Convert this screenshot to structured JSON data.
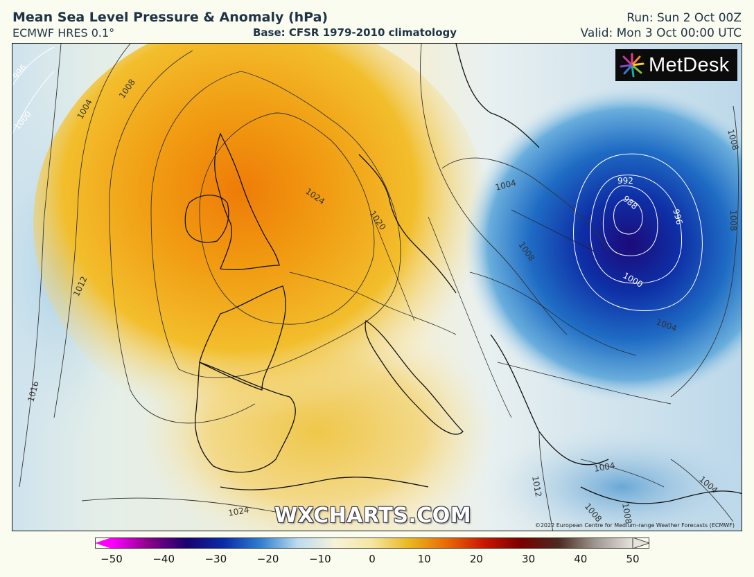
{
  "header": {
    "title": "Mean Sea Level Pressure & Anomaly (hPa)",
    "model": "ECMWF HRES 0.1°",
    "base": "Base: CFSR 1979-2010 climatology",
    "run": "Run: Sun 2 Oct 00Z",
    "valid": "Valid: Mon 3 Oct 00:00 UTC"
  },
  "logo": {
    "text": "MetDesk",
    "icon": "metdesk-starburst-icon"
  },
  "watermark": "WXCHARTS.COM",
  "copyright": "©2022 European Centre for Medium-range Weather Forecasts (ECMWF)",
  "isobar_labels": [
    "996",
    "1000",
    "1004",
    "1008",
    "1012",
    "1016",
    "1020",
    "1024",
    "1004",
    "1008",
    "1000",
    "996",
    "992",
    "988",
    "1004",
    "1008",
    "1012",
    "1004",
    "1004",
    "1008",
    "1024",
    "1008",
    "1008"
  ],
  "colorbar": {
    "ticks": [
      "−50",
      "−40",
      "−30",
      "−20",
      "−10",
      "0",
      "10",
      "20",
      "30",
      "40",
      "50"
    ],
    "stops": [
      "#ff00ff",
      "#8a008a",
      "#1a0070",
      "#0a2aa8",
      "#2e7fd0",
      "#bcdcee",
      "#f6f2d8",
      "#f5e6a0",
      "#eab720",
      "#e86a05",
      "#c81800",
      "#7a0000",
      "#4a2a20",
      "#a09890",
      "#e6e2dc"
    ],
    "range": [
      -50,
      50
    ]
  },
  "colors": {
    "high_core": "#ef8a0a",
    "high": "#f2b51f",
    "low_core": "#2a0a8a",
    "low": "#1a5cbf",
    "neutral": "#f3f1dc"
  }
}
